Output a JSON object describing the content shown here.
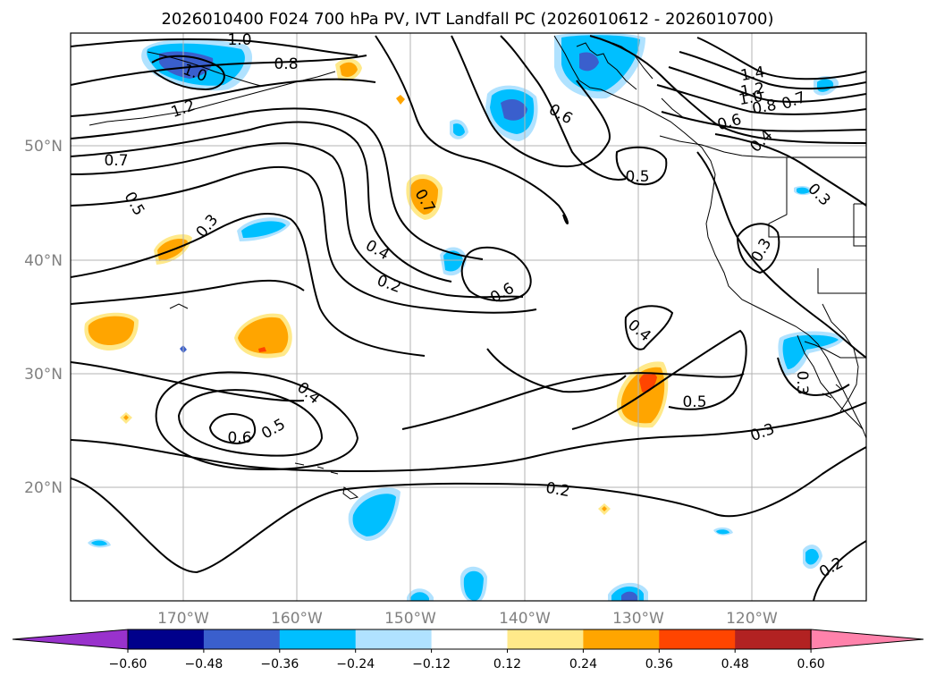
{
  "title": "2026010400 F024 700 hPa PV, IVT Landfall PC (2026010612 - 2026010700)",
  "lat_labels": [
    "50°N",
    "40°N",
    "30°N",
    "20°N"
  ],
  "lon_labels": [
    "170°W",
    "160°W",
    "150°W",
    "140°W",
    "130°W",
    "120°W"
  ],
  "colorbar": {
    "ticks": [
      "−0.60",
      "−0.48",
      "−0.36",
      "−0.24",
      "−0.12",
      "0.12",
      "0.24",
      "0.36",
      "0.48",
      "0.60"
    ],
    "colors": [
      "#9932cc",
      "#00008b",
      "#3a5fcd",
      "#00bfff",
      "#b0e2ff",
      "#ffffff",
      "#ffe98a",
      "#ffa500",
      "#ff4500",
      "#b22222",
      "#ff82ab"
    ]
  },
  "contour_labels": [
    "1.0",
    "0.8",
    "1.0",
    "1.2",
    "0.7",
    "0.5",
    "0.3",
    "0.4",
    "0.2",
    "0.7",
    "0.6",
    "1.4",
    "1.2",
    "1.0",
    "0.8",
    "0.7",
    "0.6",
    "0.4",
    "0.5",
    "0.3",
    "0.3",
    "0.6",
    "0.4",
    "0.5",
    "0.3",
    "0.4",
    "0.6",
    "0.5",
    "0.2",
    "0.3",
    "0.2"
  ]
}
